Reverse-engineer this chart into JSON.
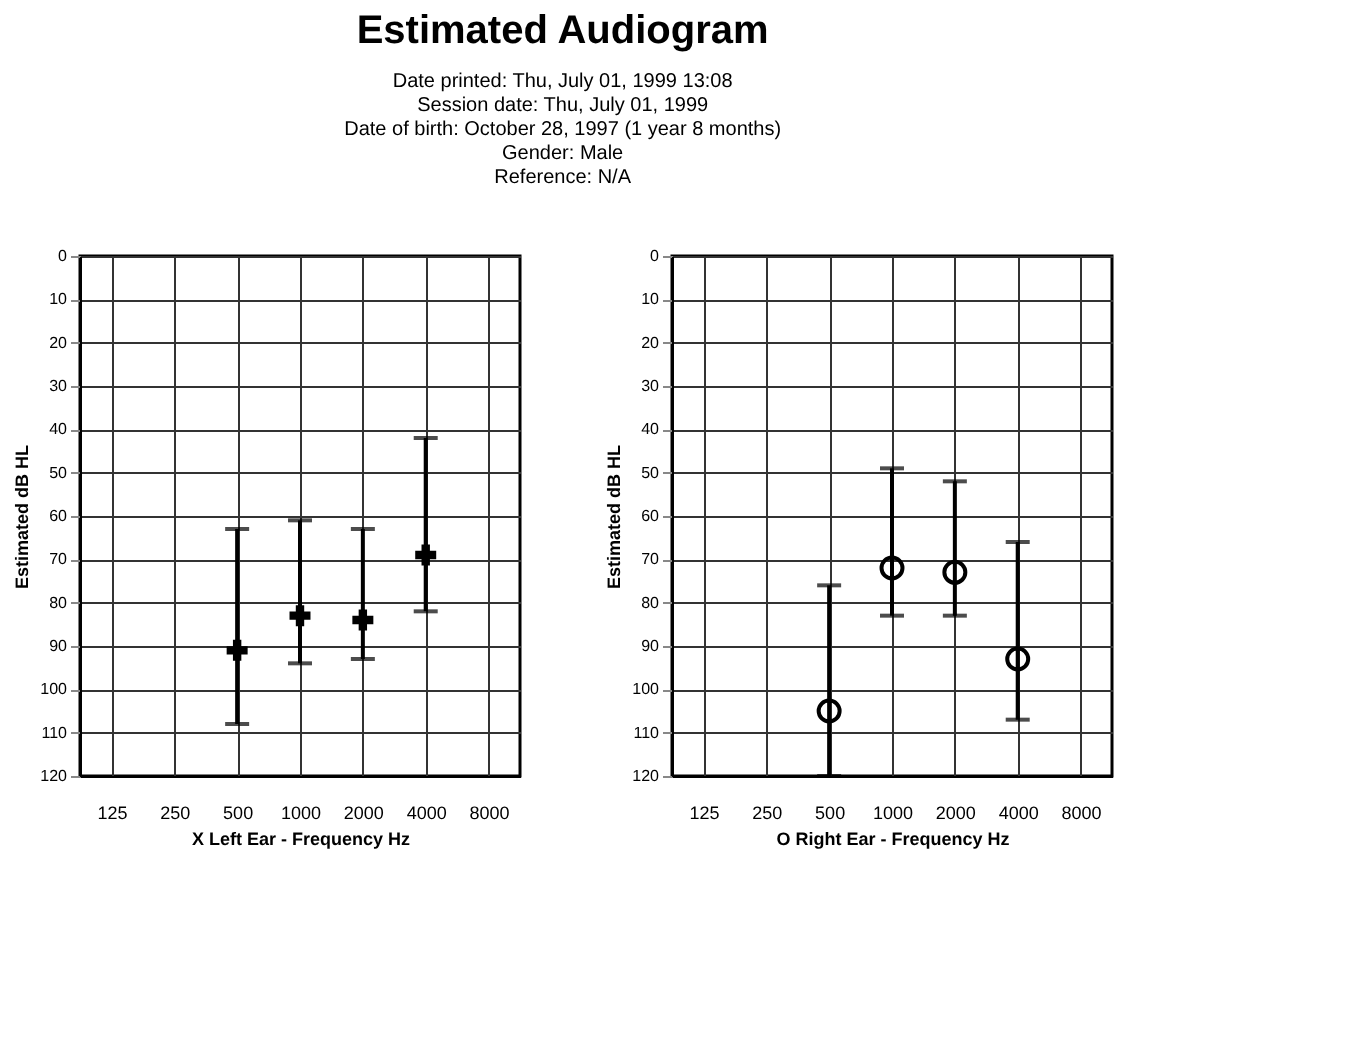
{
  "chart_data": [
    {
      "type": "scatter",
      "title": "Estimated Audiogram",
      "annotations": [
        "Date printed: Thu, July 01, 1999 13:08",
        "Session date: Thu, July 01, 1999",
        "Date of birth: October 28, 1997 (1 year 8 months)",
        "Gender: Male",
        "Reference: N/A"
      ],
      "categories": [
        "125",
        "250",
        "500",
        "1000",
        "2000",
        "4000",
        "8000"
      ],
      "xlabel": "X Left Ear - Frequency Hz",
      "ylabel": "Estimated dB HL",
      "series": [
        {
          "color": "#000000",
          "values": [
            null,
            null,
            91,
            83,
            84,
            69,
            null
          ],
          "errors": [
            null,
            null,
            [
              63,
              108
            ],
            [
              61,
              94
            ],
            [
              63,
              93
            ],
            [
              42,
              82
            ],
            null
          ]
        }
      ],
      "ylim": [
        120,
        0
      ],
      "yticks": [
        0,
        10,
        20,
        30,
        40,
        50,
        60,
        70,
        80,
        90,
        100,
        110,
        120
      ],
      "grid": true,
      "marker": "cross"
    },
    {
      "type": "scatter",
      "categories": [
        "125",
        "250",
        "500",
        "1000",
        "2000",
        "4000",
        "8000"
      ],
      "xlabel": "O Right Ear - Frequency Hz",
      "ylabel": "Estimated dB HL",
      "series": [
        {
          "color": "#000000",
          "values": [
            null,
            null,
            105,
            72,
            73,
            93,
            null
          ],
          "errors": [
            null,
            null,
            [
              76,
              120
            ],
            [
              49,
              83
            ],
            [
              52,
              83
            ],
            [
              66,
              107
            ],
            null
          ]
        }
      ],
      "ylim": [
        120,
        0
      ],
      "yticks": [
        0,
        10,
        20,
        30,
        40,
        50,
        60,
        70,
        80,
        90,
        100,
        110,
        120
      ],
      "grid": true,
      "marker": "circle"
    }
  ]
}
